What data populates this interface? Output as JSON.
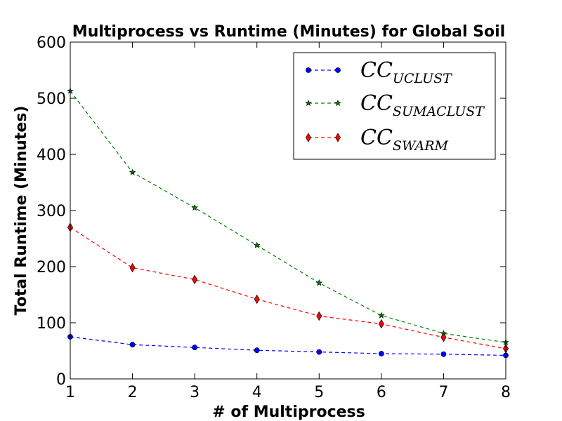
{
  "chart_data": {
    "type": "line",
    "title": "Multiprocess vs Runtime (Minutes) for Global Soil",
    "xlabel": "# of Multiprocess",
    "ylabel": "Total Runtime (Minutes)",
    "x": [
      1,
      2,
      3,
      4,
      5,
      6,
      7,
      8
    ],
    "xlim": [
      1,
      8
    ],
    "ylim": [
      0,
      600
    ],
    "xticks": [
      "1",
      "2",
      "3",
      "4",
      "5",
      "6",
      "7",
      "8"
    ],
    "yticks": [
      "0",
      "100",
      "200",
      "300",
      "400",
      "500",
      "600"
    ],
    "grid": false,
    "legend_position": "top-right",
    "series": [
      {
        "name": "CC_UCLUST",
        "legend_base": "CC",
        "legend_sub": "UCLUST",
        "values": [
          75,
          61,
          56,
          51,
          48,
          45,
          44,
          42
        ],
        "color": "#0000ff",
        "marker": "circle",
        "linestyle": "dashed"
      },
      {
        "name": "CC_SUMACLUST",
        "legend_base": "CC",
        "legend_sub": "SUMACLUST",
        "values": [
          513,
          368,
          305,
          238,
          171,
          113,
          81,
          65
        ],
        "color": "#008000",
        "marker": "star",
        "linestyle": "dashed"
      },
      {
        "name": "CC_SWARM",
        "legend_base": "CC",
        "legend_sub": "SWARM",
        "values": [
          270,
          198,
          177,
          142,
          112,
          98,
          74,
          54
        ],
        "color": "#ff0000",
        "marker": "diamond",
        "linestyle": "dashed"
      }
    ]
  }
}
